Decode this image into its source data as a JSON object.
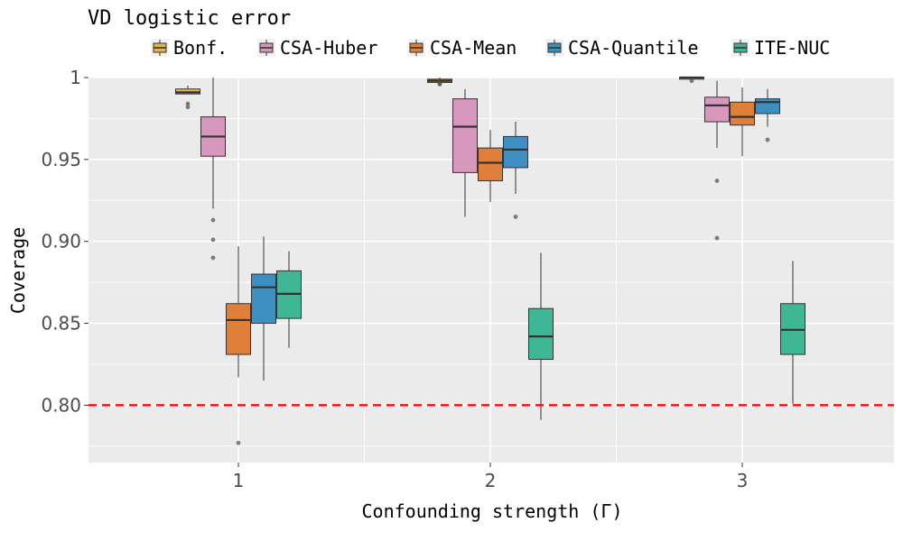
{
  "chart_data": {
    "type": "box",
    "title": "VD logistic error",
    "xlabel": "Confounding strength (Γ)",
    "ylabel": "Coverage",
    "categories": [
      "1",
      "2",
      "3"
    ],
    "ylim": [
      0.765,
      1.0
    ],
    "yticks": [
      {
        "value": 0.8,
        "label": "0.80"
      },
      {
        "value": 0.85,
        "label": "0.85"
      },
      {
        "value": 0.9,
        "label": "0.90"
      },
      {
        "value": 0.95,
        "label": "0.95"
      },
      {
        "value": 1.0,
        "label": "1"
      }
    ],
    "reference_line": {
      "value": 0.8,
      "color": "#ff0000",
      "style": "dashed"
    },
    "grid": true,
    "legend_position": "top",
    "series": [
      {
        "name": "Bonf.",
        "color": "#e6b64c",
        "boxes": [
          {
            "category": "1",
            "whisker_low": 0.99,
            "q1": 0.99,
            "median": 0.991,
            "q3": 0.993,
            "whisker_high": 0.995,
            "outliers": [
              0.984,
              0.982
            ]
          },
          {
            "category": "2",
            "whisker_low": 0.997,
            "q1": 0.997,
            "median": 0.998,
            "q3": 0.999,
            "whisker_high": 1.0,
            "outliers": [
              0.996,
              0.996
            ]
          },
          {
            "category": "3",
            "whisker_low": 0.999,
            "q1": 0.999,
            "median": 1.0,
            "q3": 1.0,
            "whisker_high": 1.0,
            "outliers": [
              0.998
            ]
          }
        ]
      },
      {
        "name": "CSA-Huber",
        "color": "#d897bc",
        "boxes": [
          {
            "category": "1",
            "whisker_low": 0.92,
            "q1": 0.952,
            "median": 0.964,
            "q3": 0.976,
            "whisker_high": 1.0,
            "outliers": [
              0.913,
              0.901,
              0.89
            ]
          },
          {
            "category": "2",
            "whisker_low": 0.915,
            "q1": 0.942,
            "median": 0.97,
            "q3": 0.987,
            "whisker_high": 0.993,
            "outliers": []
          },
          {
            "category": "3",
            "whisker_low": 0.957,
            "q1": 0.973,
            "median": 0.983,
            "q3": 0.988,
            "whisker_high": 0.998,
            "outliers": [
              0.937,
              0.902
            ]
          }
        ]
      },
      {
        "name": "CSA-Mean",
        "color": "#df7f3a",
        "boxes": [
          {
            "category": "1",
            "whisker_low": 0.817,
            "q1": 0.831,
            "median": 0.852,
            "q3": 0.862,
            "whisker_high": 0.897,
            "outliers": [
              0.777
            ]
          },
          {
            "category": "2",
            "whisker_low": 0.924,
            "q1": 0.937,
            "median": 0.948,
            "q3": 0.957,
            "whisker_high": 0.968,
            "outliers": []
          },
          {
            "category": "3",
            "whisker_low": 0.952,
            "q1": 0.971,
            "median": 0.976,
            "q3": 0.985,
            "whisker_high": 0.994,
            "outliers": []
          }
        ]
      },
      {
        "name": "CSA-Quantile",
        "color": "#3d8fc1",
        "boxes": [
          {
            "category": "1",
            "whisker_low": 0.815,
            "q1": 0.85,
            "median": 0.872,
            "q3": 0.88,
            "whisker_high": 0.903,
            "outliers": []
          },
          {
            "category": "2",
            "whisker_low": 0.929,
            "q1": 0.945,
            "median": 0.956,
            "q3": 0.964,
            "whisker_high": 0.973,
            "outliers": [
              0.915
            ]
          },
          {
            "category": "3",
            "whisker_low": 0.97,
            "q1": 0.978,
            "median": 0.985,
            "q3": 0.987,
            "whisker_high": 0.993,
            "outliers": [
              0.962
            ]
          }
        ]
      },
      {
        "name": "ITE-NUC",
        "color": "#3fb795",
        "boxes": [
          {
            "category": "1",
            "whisker_low": 0.835,
            "q1": 0.853,
            "median": 0.868,
            "q3": 0.882,
            "whisker_high": 0.894,
            "outliers": []
          },
          {
            "category": "2",
            "whisker_low": 0.791,
            "q1": 0.828,
            "median": 0.842,
            "q3": 0.859,
            "whisker_high": 0.893,
            "outliers": []
          },
          {
            "category": "3",
            "whisker_low": 0.801,
            "q1": 0.831,
            "median": 0.846,
            "q3": 0.862,
            "whisker_high": 0.888,
            "outliers": []
          }
        ]
      }
    ]
  }
}
